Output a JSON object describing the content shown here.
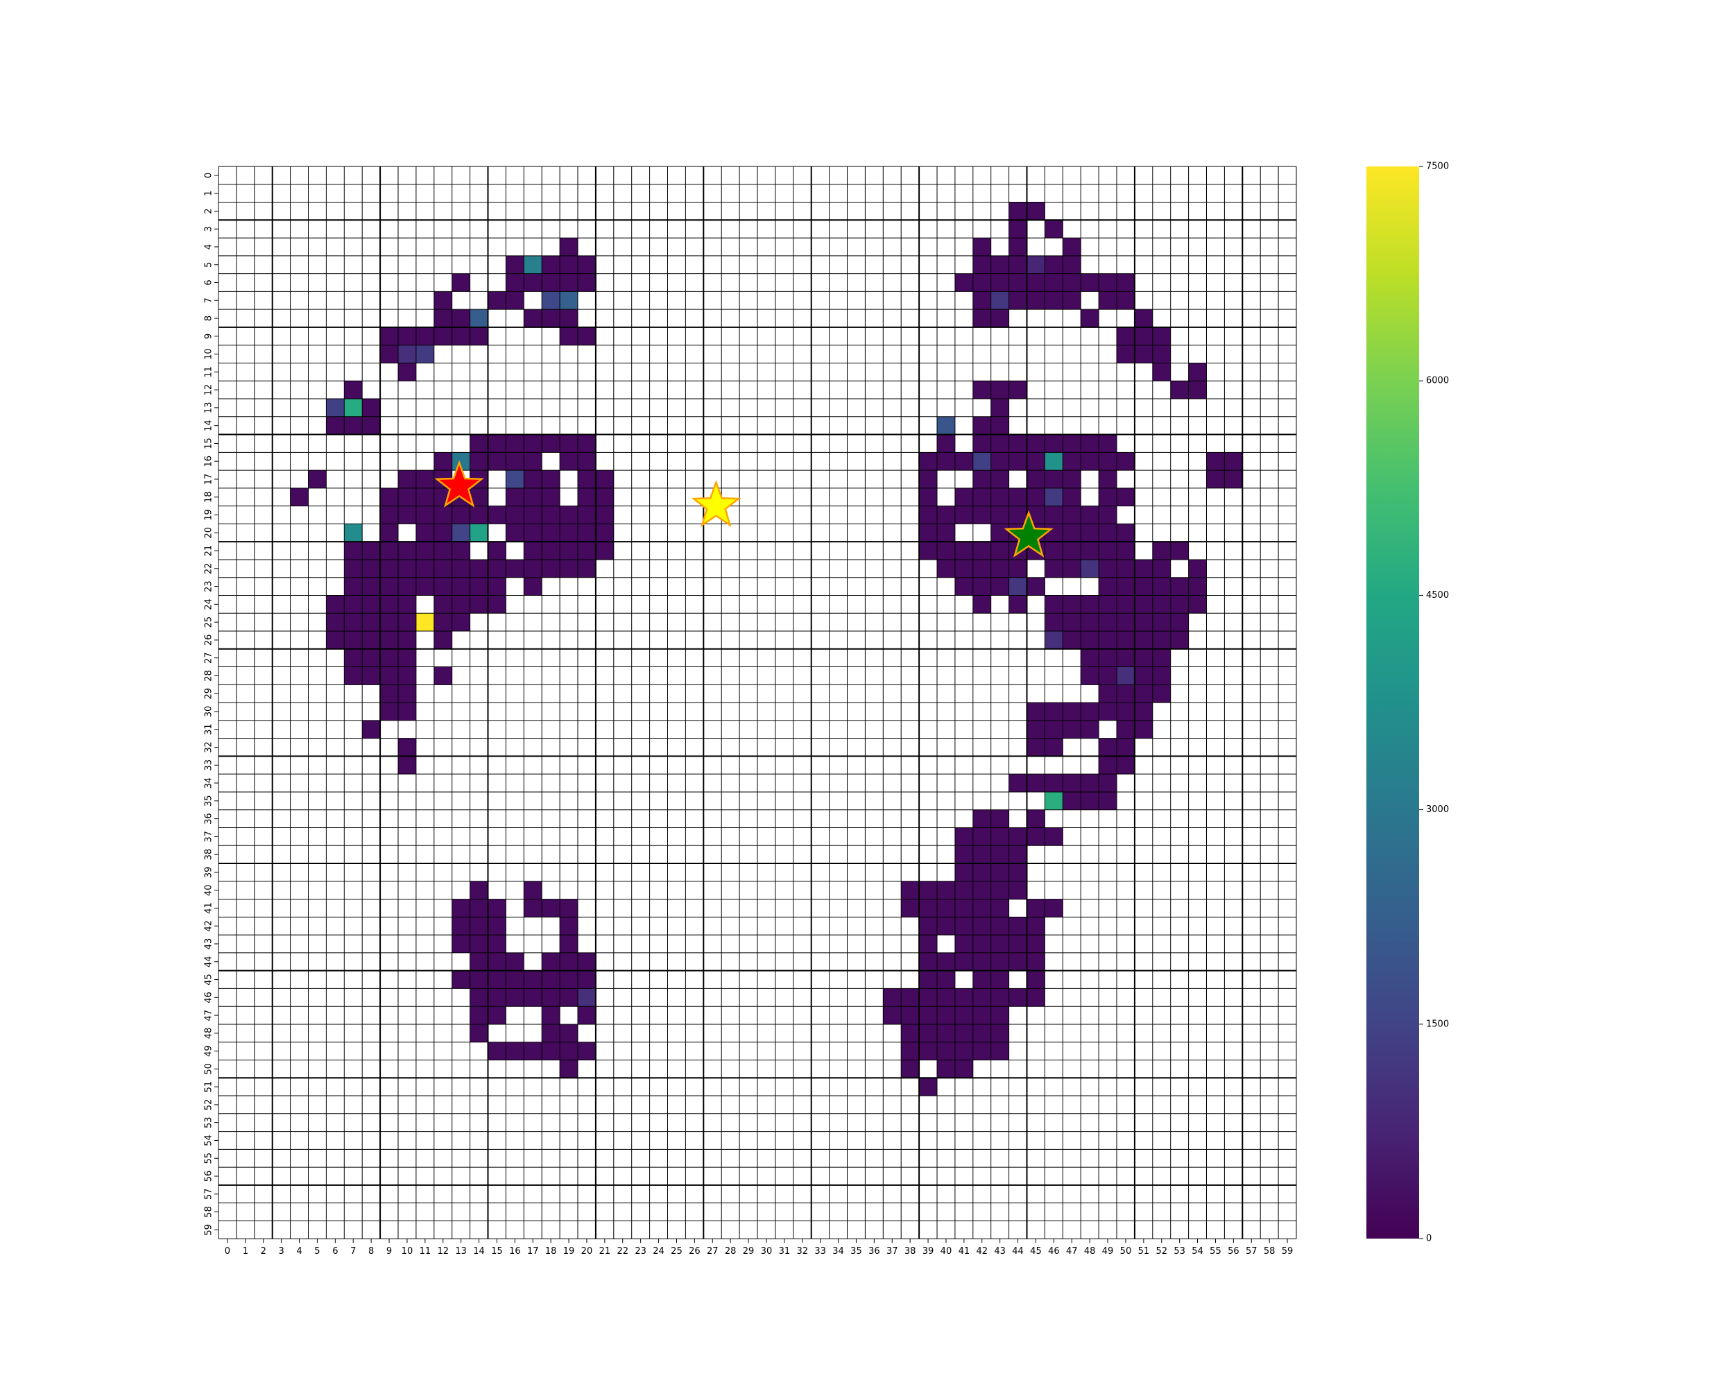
{
  "chart_data": {
    "type": "heatmap",
    "rows": 60,
    "cols": 60,
    "x_tick_labels": [
      "0",
      "1",
      "2",
      "3",
      "4",
      "5",
      "6",
      "7",
      "8",
      "9",
      "10",
      "11",
      "12",
      "13",
      "14",
      "15",
      "16",
      "17",
      "18",
      "19",
      "20",
      "21",
      "22",
      "23",
      "24",
      "25",
      "26",
      "27",
      "28",
      "29",
      "30",
      "31",
      "32",
      "33",
      "34",
      "35",
      "36",
      "37",
      "38",
      "39",
      "40",
      "41",
      "42",
      "43",
      "44",
      "45",
      "46",
      "47",
      "48",
      "49",
      "50",
      "51",
      "52",
      "53",
      "54",
      "55",
      "56",
      "57",
      "58",
      "59"
    ],
    "y_tick_labels": [
      "0",
      "1",
      "2",
      "3",
      "4",
      "5",
      "6",
      "7",
      "8",
      "9",
      "10",
      "11",
      "12",
      "13",
      "14",
      "15",
      "16",
      "17",
      "18",
      "19",
      "20",
      "21",
      "22",
      "23",
      "24",
      "25",
      "26",
      "27",
      "28",
      "29",
      "30",
      "31",
      "32",
      "33",
      "34",
      "35",
      "36",
      "37",
      "38",
      "39",
      "40",
      "41",
      "42",
      "43",
      "44",
      "45",
      "46",
      "47",
      "48",
      "49",
      "50",
      "51",
      "52",
      "53",
      "54",
      "55",
      "56",
      "57",
      "58",
      "59"
    ],
    "colormap": "viridis",
    "vmin": 0,
    "vmax": 7500,
    "colorbar_ticks": [
      "0",
      "1500",
      "3000",
      "4500",
      "6000",
      "7500"
    ],
    "major_grid_every": 6,
    "default_value": 200,
    "runs": [
      [
        2,
        44,
        45
      ],
      [
        3,
        44,
        44
      ],
      [
        3,
        46,
        46
      ],
      [
        4,
        19,
        19
      ],
      [
        4,
        42,
        42
      ],
      [
        4,
        44,
        44
      ],
      [
        4,
        47,
        47
      ],
      [
        5,
        16,
        20
      ],
      [
        5,
        42,
        47
      ],
      [
        6,
        13,
        13
      ],
      [
        6,
        16,
        20
      ],
      [
        6,
        41,
        50
      ],
      [
        7,
        12,
        12
      ],
      [
        7,
        15,
        16
      ],
      [
        7,
        18,
        19
      ],
      [
        7,
        42,
        47
      ],
      [
        7,
        49,
        50
      ],
      [
        8,
        12,
        14
      ],
      [
        8,
        17,
        19
      ],
      [
        8,
        42,
        43
      ],
      [
        8,
        48,
        48
      ],
      [
        8,
        51,
        51
      ],
      [
        9,
        9,
        14
      ],
      [
        9,
        19,
        20
      ],
      [
        9,
        50,
        52
      ],
      [
        10,
        9,
        11
      ],
      [
        10,
        50,
        52
      ],
      [
        11,
        10,
        10
      ],
      [
        11,
        52,
        52
      ],
      [
        11,
        54,
        54
      ],
      [
        12,
        7,
        7
      ],
      [
        12,
        42,
        44
      ],
      [
        12,
        53,
        54
      ],
      [
        13,
        6,
        8
      ],
      [
        13,
        43,
        43
      ],
      [
        14,
        6,
        8
      ],
      [
        14,
        40,
        40
      ],
      [
        14,
        42,
        43
      ],
      [
        15,
        14,
        20
      ],
      [
        15,
        40,
        40
      ],
      [
        15,
        42,
        49
      ],
      [
        16,
        12,
        17
      ],
      [
        16,
        19,
        20
      ],
      [
        16,
        39,
        50
      ],
      [
        16,
        55,
        56
      ],
      [
        17,
        5,
        5
      ],
      [
        17,
        10,
        12
      ],
      [
        17,
        14,
        14
      ],
      [
        17,
        16,
        18
      ],
      [
        17,
        20,
        21
      ],
      [
        17,
        39,
        39
      ],
      [
        17,
        42,
        43
      ],
      [
        17,
        45,
        47
      ],
      [
        17,
        49,
        49
      ],
      [
        17,
        55,
        56
      ],
      [
        18,
        4,
        4
      ],
      [
        18,
        9,
        14
      ],
      [
        18,
        16,
        18
      ],
      [
        18,
        20,
        21
      ],
      [
        18,
        39,
        39
      ],
      [
        18,
        41,
        47
      ],
      [
        18,
        49,
        50
      ],
      [
        19,
        9,
        21
      ],
      [
        19,
        39,
        49
      ],
      [
        20,
        7,
        7
      ],
      [
        20,
        9,
        9
      ],
      [
        20,
        11,
        14
      ],
      [
        20,
        16,
        21
      ],
      [
        20,
        39,
        40
      ],
      [
        20,
        43,
        50
      ],
      [
        21,
        7,
        13
      ],
      [
        21,
        15,
        15
      ],
      [
        21,
        17,
        21
      ],
      [
        21,
        39,
        50
      ],
      [
        21,
        52,
        53
      ],
      [
        22,
        7,
        20
      ],
      [
        22,
        40,
        44
      ],
      [
        22,
        46,
        52
      ],
      [
        22,
        54,
        54
      ],
      [
        23,
        7,
        15
      ],
      [
        23,
        17,
        17
      ],
      [
        23,
        41,
        45
      ],
      [
        23,
        49,
        54
      ],
      [
        24,
        6,
        10
      ],
      [
        24,
        12,
        15
      ],
      [
        24,
        42,
        42
      ],
      [
        24,
        44,
        44
      ],
      [
        24,
        46,
        54
      ],
      [
        25,
        6,
        13
      ],
      [
        25,
        46,
        53
      ],
      [
        26,
        6,
        10
      ],
      [
        26,
        12,
        12
      ],
      [
        26,
        46,
        53
      ],
      [
        27,
        7,
        10
      ],
      [
        27,
        48,
        52
      ],
      [
        28,
        7,
        10
      ],
      [
        28,
        12,
        12
      ],
      [
        28,
        48,
        52
      ],
      [
        29,
        9,
        10
      ],
      [
        29,
        49,
        52
      ],
      [
        30,
        9,
        10
      ],
      [
        30,
        45,
        51
      ],
      [
        31,
        8,
        8
      ],
      [
        31,
        45,
        48
      ],
      [
        31,
        50,
        51
      ],
      [
        32,
        10,
        10
      ],
      [
        32,
        45,
        46
      ],
      [
        32,
        49,
        50
      ],
      [
        33,
        10,
        10
      ],
      [
        33,
        49,
        50
      ],
      [
        34,
        44,
        49
      ],
      [
        35,
        46,
        49
      ],
      [
        36,
        42,
        43
      ],
      [
        36,
        45,
        45
      ],
      [
        37,
        41,
        46
      ],
      [
        38,
        41,
        44
      ],
      [
        39,
        41,
        44
      ],
      [
        40,
        14,
        14
      ],
      [
        40,
        17,
        17
      ],
      [
        40,
        38,
        44
      ],
      [
        41,
        13,
        15
      ],
      [
        41,
        17,
        19
      ],
      [
        41,
        38,
        43
      ],
      [
        41,
        45,
        46
      ],
      [
        42,
        13,
        15
      ],
      [
        42,
        19,
        19
      ],
      [
        42,
        39,
        45
      ],
      [
        43,
        13,
        15
      ],
      [
        43,
        19,
        19
      ],
      [
        43,
        39,
        39
      ],
      [
        43,
        41,
        45
      ],
      [
        44,
        14,
        16
      ],
      [
        44,
        18,
        20
      ],
      [
        44,
        39,
        45
      ],
      [
        45,
        13,
        20
      ],
      [
        45,
        39,
        40
      ],
      [
        45,
        42,
        43
      ],
      [
        45,
        45,
        45
      ],
      [
        46,
        14,
        20
      ],
      [
        46,
        37,
        45
      ],
      [
        47,
        14,
        15
      ],
      [
        47,
        18,
        18
      ],
      [
        47,
        20,
        20
      ],
      [
        47,
        37,
        43
      ],
      [
        48,
        14,
        14
      ],
      [
        48,
        18,
        19
      ],
      [
        48,
        38,
        43
      ],
      [
        49,
        15,
        20
      ],
      [
        49,
        38,
        43
      ],
      [
        50,
        19,
        19
      ],
      [
        50,
        38,
        38
      ],
      [
        50,
        40,
        41
      ],
      [
        51,
        39,
        39
      ]
    ],
    "highlights": [
      [
        5,
        17,
        3200
      ],
      [
        5,
        45,
        800
      ],
      [
        7,
        18,
        1600
      ],
      [
        7,
        19,
        2300
      ],
      [
        7,
        43,
        1200
      ],
      [
        8,
        14,
        2200
      ],
      [
        10,
        10,
        1000
      ],
      [
        10,
        11,
        1300
      ],
      [
        13,
        6,
        1400
      ],
      [
        13,
        7,
        4600
      ],
      [
        14,
        40,
        2000
      ],
      [
        16,
        13,
        3000
      ],
      [
        16,
        42,
        1400
      ],
      [
        16,
        46,
        3800
      ],
      [
        17,
        16,
        1600
      ],
      [
        18,
        46,
        1300
      ],
      [
        20,
        7,
        3600
      ],
      [
        20,
        14,
        4300
      ],
      [
        20,
        13,
        1500
      ],
      [
        22,
        48,
        1100
      ],
      [
        23,
        44,
        1200
      ],
      [
        25,
        11,
        7500
      ],
      [
        26,
        46,
        1000
      ],
      [
        28,
        50,
        1000
      ],
      [
        35,
        46,
        4700
      ],
      [
        46,
        20,
        1000
      ]
    ],
    "markers": [
      {
        "name": "red-star",
        "row": 17.4,
        "col": 12.9,
        "color": "#ff0000"
      },
      {
        "name": "yellow-star",
        "row": 18.5,
        "col": 27.2,
        "color": "#ffff00"
      },
      {
        "name": "green-star",
        "row": 20.2,
        "col": 44.6,
        "color": "#008000"
      }
    ]
  }
}
